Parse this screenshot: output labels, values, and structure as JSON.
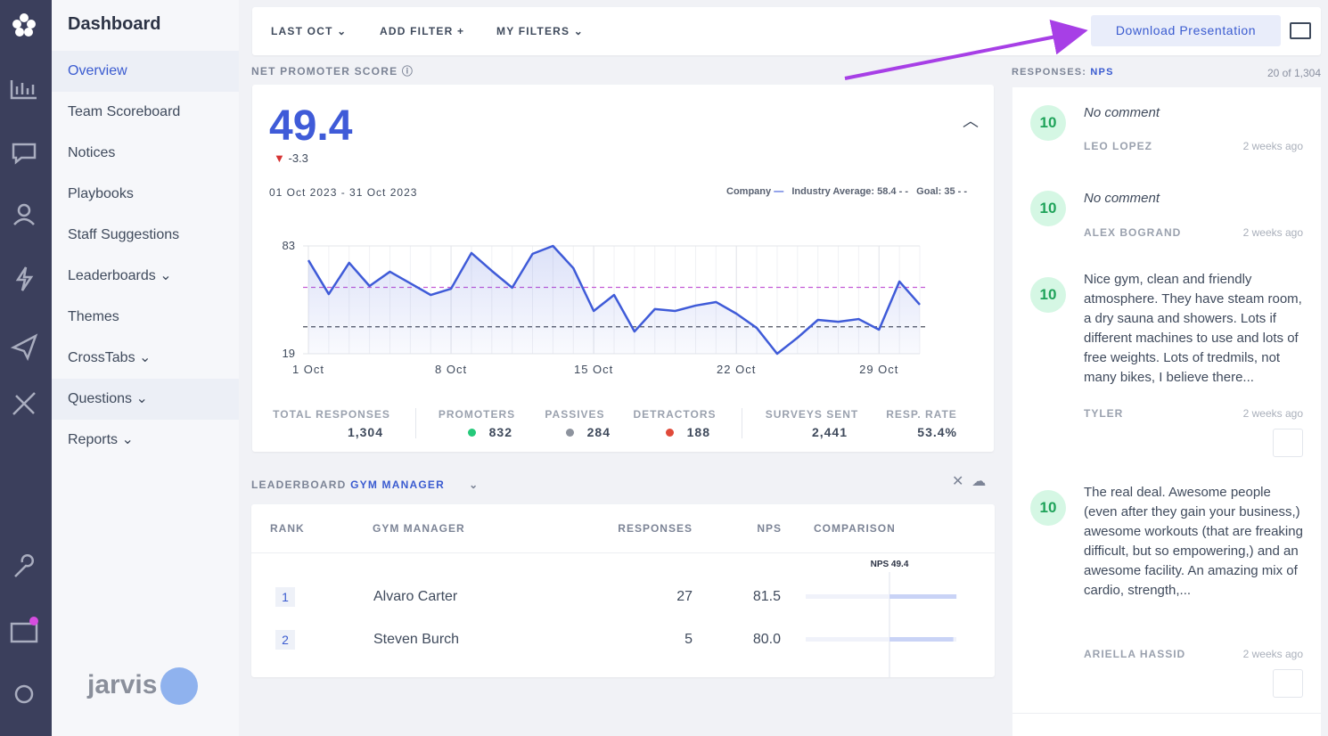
{
  "sidebar": {
    "title": "Dashboard",
    "items": [
      "Overview",
      "Team Scoreboard",
      "Notices",
      "Playbooks",
      "Staff Suggestions",
      "Leaderboards",
      "Themes",
      "CrossTabs",
      "Questions",
      "Reports"
    ],
    "logo": "jarvis"
  },
  "filters": {
    "period": "LAST OCT",
    "add_filter": "ADD FILTER",
    "my_filters": "MY FILTERS",
    "download": "Download Presentation"
  },
  "chart_data": {
    "type": "line",
    "title": "NET PROMOTER SCORE",
    "score": 49.4,
    "change": -3.3,
    "date_range": "01 Oct 2023 - 31 Oct 2023",
    "x": [
      1,
      2,
      3,
      4,
      5,
      6,
      7,
      8,
      9,
      10,
      11,
      12,
      13,
      14,
      15,
      16,
      17,
      18,
      19,
      20,
      21,
      22,
      23,
      24,
      25,
      26,
      27,
      28,
      29,
      30,
      31
    ],
    "series": [
      {
        "name": "Company",
        "color": "#3f5bd8",
        "values": [
          74.5,
          54.4,
          73.0,
          59.2,
          67.7,
          60.8,
          53.9,
          57.6,
          78.8,
          68.2,
          58.2,
          78.3,
          83.0,
          69.8,
          44.4,
          53.9,
          32.2,
          45.5,
          44.4,
          47.6,
          49.7,
          42.8,
          34.3,
          19.0,
          28.5,
          39.1,
          38.0,
          39.6,
          33.3,
          61.9,
          48.1
        ]
      }
    ],
    "reference_lines": [
      {
        "name": "Industry Average:",
        "value": 58.4,
        "color": "#c35bd6"
      },
      {
        "name": "Goal:",
        "value": 35,
        "color": "#4a4f5c"
      }
    ],
    "xlim": [
      1,
      31
    ],
    "xticks": [
      {
        "value": 1,
        "label": "1 Oct"
      },
      {
        "value": 8,
        "label": "8 Oct"
      },
      {
        "value": 15,
        "label": "15 Oct"
      },
      {
        "value": 22,
        "label": "22 Oct"
      },
      {
        "value": 29,
        "label": "29 Oct"
      }
    ],
    "ylim": [
      19,
      83
    ],
    "yticks": [
      19,
      83
    ],
    "grid": true
  },
  "stats": [
    {
      "label": "TOTAL RESPONSES",
      "value": "1,304"
    },
    {
      "label": "PROMOTERS",
      "value": "832"
    },
    {
      "label": "PASSIVES",
      "value": "284"
    },
    {
      "label": "DETRACTORS",
      "value": "188"
    },
    {
      "label": "SURVEYS SENT",
      "value": "2,441"
    },
    {
      "label": "RESP. RATE",
      "value": "53.4%"
    }
  ],
  "leaderboard": {
    "label": "LEADERBOARD",
    "group": "GYM MANAGER",
    "columns": [
      "RANK",
      "GYM MANAGER",
      "RESPONSES",
      "NPS",
      "COMPARISON"
    ],
    "benchmark": {
      "value": 49.4,
      "label": "NPS 49.4"
    },
    "rows": [
      {
        "rank": 1,
        "name": "Alvaro Carter",
        "responses": 27,
        "nps": {
          "value": 81.5,
          "label": "81.5"
        }
      },
      {
        "rank": 2,
        "name": "Steven Burch",
        "responses": 5,
        "nps": {
          "value": 80.0,
          "label": "80.0"
        }
      }
    ]
  },
  "responses": {
    "label": "RESPONSES:",
    "metric": "NPS",
    "count": "20 of 1,304",
    "items": [
      {
        "score": 10,
        "comment": "No comment",
        "name": "LEO LOPEZ",
        "time": "2 weeks ago"
      },
      {
        "score": 10,
        "comment": "No comment",
        "name": "ALEX BOGRAND",
        "time": "2 weeks ago"
      },
      {
        "score": 10,
        "comment": "Nice gym, clean and friendly atmosphere. They have steam room, a dry sauna and showers. Lots if different machines to use and lots of free weights. Lots of tredmils, not many bikes, I believe there...",
        "name": "TYLER",
        "time": "2 weeks ago"
      },
      {
        "score": 10,
        "comment": "The real deal. Awesome people (even after they gain your business,) awesome workouts (that are freaking difficult, but so empowering,) and an awesome facility. An amazing mix of cardio, strength,...",
        "name": "ARIELLA HASSID",
        "time": "2 weeks ago"
      }
    ]
  }
}
